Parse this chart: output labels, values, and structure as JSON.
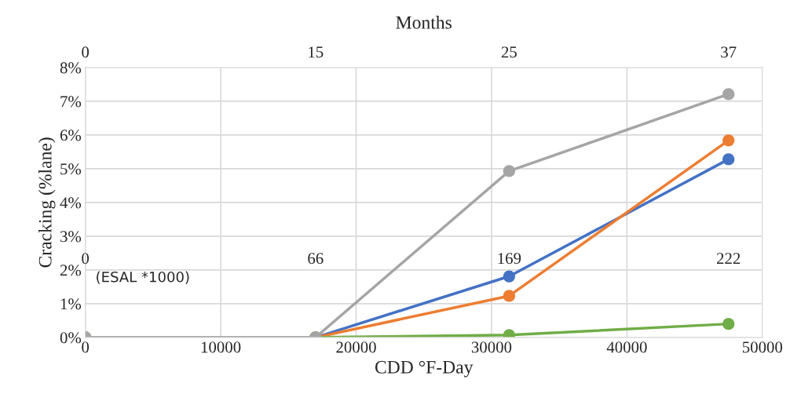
{
  "chart_data": {
    "type": "line",
    "xlabel": "CDD °F-Day",
    "ylabel": "Cracking (%lane)",
    "x2label": "Months",
    "x": [
      0,
      17000,
      31300,
      47500
    ],
    "series": [
      {
        "color": "#4472c4",
        "values": [
          0,
          0,
          1.81,
          5.28
        ]
      },
      {
        "color": "#ed7d31",
        "values": [
          0,
          0,
          1.23,
          5.84
        ]
      },
      {
        "color": "#70ad47",
        "values": [
          0,
          0,
          0.07,
          0.4
        ]
      },
      {
        "color": "#a5a5a5",
        "values": [
          0,
          0,
          4.93,
          7.21
        ]
      }
    ],
    "xlim": [
      0,
      50000
    ],
    "xticks": [
      0,
      10000,
      20000,
      30000,
      40000,
      50000
    ],
    "ylim": [
      0,
      8
    ],
    "yticks": [
      {
        "value": 0,
        "label": "0%"
      },
      {
        "value": 1,
        "label": "1%"
      },
      {
        "value": 2,
        "label": "2%"
      },
      {
        "value": 3,
        "label": "3%"
      },
      {
        "value": 4,
        "label": "4%"
      },
      {
        "value": 5,
        "label": "5%"
      },
      {
        "value": 6,
        "label": "6%"
      },
      {
        "value": 7,
        "label": "7%"
      },
      {
        "value": 8,
        "label": "8%"
      }
    ],
    "annotations": [
      "0",
      "15",
      "25",
      "37",
      "0",
      "66",
      "169",
      "222",
      "(ESAL *1000)"
    ],
    "grid": true,
    "marker": "circle",
    "line_style": "solid",
    "legend": false
  }
}
